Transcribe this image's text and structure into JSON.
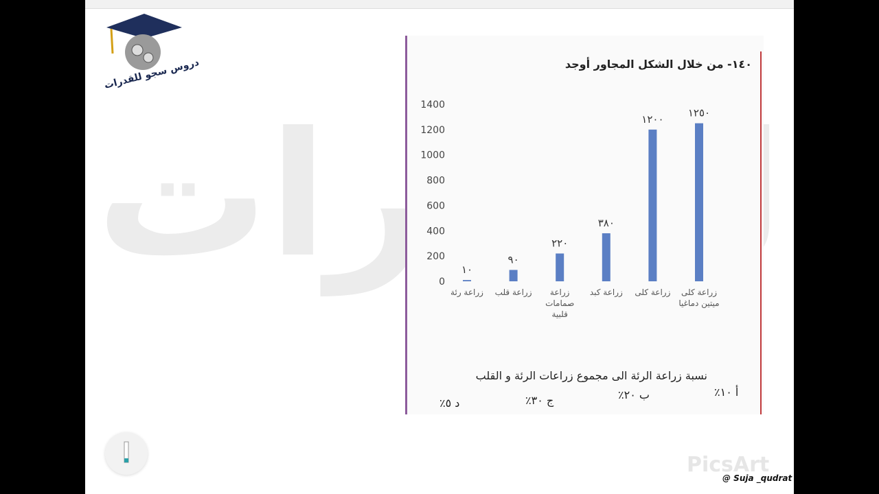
{
  "watermark": "للقدرات",
  "logo_text": "دروس سجو للقدرات",
  "chart_data": {
    "type": "bar",
    "title": "١٤٠- من خلال الشكل المجاور أوجد",
    "categories": [
      "زراعة رئة",
      "زراعة قلب",
      "زراعة صمامات قلبية",
      "زراعة كبد",
      "زراعة كلى",
      "زراعة كلى ميتين دماغيا"
    ],
    "values": [
      10,
      90,
      220,
      380,
      1200,
      1250
    ],
    "value_labels": [
      "١٠",
      "٩٠",
      "٢٢٠",
      "٣٨٠",
      "١٢٠٠",
      "١٢٥٠"
    ],
    "color": "#5b7fc4",
    "ylim": [
      0,
      1400
    ],
    "yticks": [
      0,
      200,
      400,
      600,
      800,
      1000,
      1200,
      1400
    ],
    "grid": false
  },
  "question": {
    "text": "نسبة زراعة الرئة الى مجموع زراعات الرئة و القلب",
    "options": [
      "أ ١٠٪",
      "ب ٢٠٪",
      "ج ٣٠٪",
      "د ٥٪"
    ]
  },
  "brand": "PicsArt",
  "handle": "@ Suja _qudrat"
}
